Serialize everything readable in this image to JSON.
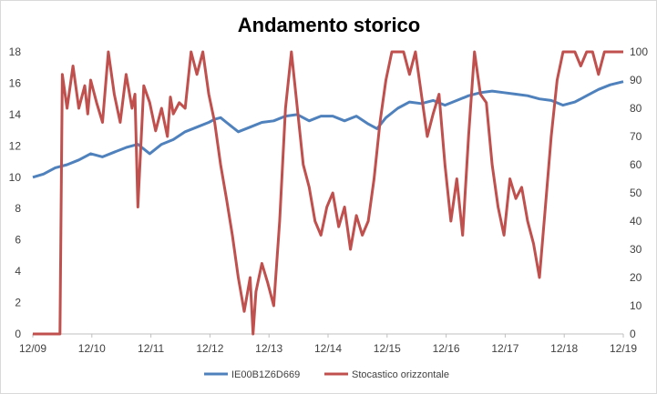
{
  "chart_data": {
    "type": "line",
    "title": "Andamento storico",
    "xlabel": "",
    "ylabel_left": "",
    "ylabel_right": "",
    "x_ticks": [
      "12/09",
      "12/10",
      "12/11",
      "12/12",
      "12/13",
      "12/14",
      "12/15",
      "12/16",
      "12/17",
      "12/18",
      "12/19"
    ],
    "ylim_left": [
      0,
      18
    ],
    "yticks_left": [
      0,
      2,
      4,
      6,
      8,
      10,
      12,
      14,
      16,
      18
    ],
    "ylim_right": [
      0,
      100
    ],
    "yticks_right": [
      0,
      10,
      20,
      30,
      40,
      50,
      60,
      70,
      80,
      90,
      100
    ],
    "grid": false,
    "legend_position": "bottom",
    "series": [
      {
        "name": "IE00B1Z6D669",
        "axis": "left",
        "color": "#4f81bd",
        "x": [
          2009.92,
          2010.1,
          2010.3,
          2010.5,
          2010.7,
          2010.9,
          2011.1,
          2011.3,
          2011.5,
          2011.7,
          2011.9,
          2012.1,
          2012.3,
          2012.5,
          2012.7,
          2012.9,
          2013.0,
          2013.1,
          2013.2,
          2013.4,
          2013.6,
          2013.8,
          2014.0,
          2014.2,
          2014.4,
          2014.6,
          2014.8,
          2015.0,
          2015.2,
          2015.4,
          2015.6,
          2015.75,
          2015.9,
          2016.1,
          2016.3,
          2016.5,
          2016.7,
          2016.9,
          2017.1,
          2017.3,
          2017.5,
          2017.7,
          2017.9,
          2018.1,
          2018.3,
          2018.5,
          2018.7,
          2018.9,
          2019.1,
          2019.3,
          2019.5,
          2019.7,
          2019.92
        ],
        "values": [
          10.0,
          10.2,
          10.6,
          10.8,
          11.1,
          11.5,
          11.3,
          11.6,
          11.9,
          12.1,
          11.5,
          12.1,
          12.4,
          12.9,
          13.2,
          13.5,
          13.7,
          13.8,
          13.5,
          12.9,
          13.2,
          13.5,
          13.6,
          13.9,
          14.0,
          13.6,
          13.9,
          13.9,
          13.6,
          13.9,
          13.4,
          13.1,
          13.8,
          14.4,
          14.8,
          14.7,
          14.9,
          14.6,
          14.9,
          15.2,
          15.4,
          15.5,
          15.4,
          15.3,
          15.2,
          15.0,
          14.9,
          14.6,
          14.8,
          15.2,
          15.6,
          15.9,
          16.1
        ]
      },
      {
        "name": "Stocastico orizzontale",
        "axis": "right",
        "color": "#c0504d",
        "x": [
          2009.92,
          2010.0,
          2010.1,
          2010.3,
          2010.38,
          2010.42,
          2010.5,
          2010.6,
          2010.7,
          2010.8,
          2010.85,
          2010.9,
          2011.0,
          2011.1,
          2011.2,
          2011.3,
          2011.4,
          2011.5,
          2011.6,
          2011.65,
          2011.7,
          2011.8,
          2011.9,
          2012.0,
          2012.1,
          2012.2,
          2012.25,
          2012.3,
          2012.4,
          2012.5,
          2012.6,
          2012.7,
          2012.8,
          2012.9,
          2013.0,
          2013.1,
          2013.2,
          2013.3,
          2013.4,
          2013.5,
          2013.6,
          2013.65,
          2013.7,
          2013.8,
          2013.9,
          2014.0,
          2014.1,
          2014.2,
          2014.3,
          2014.4,
          2014.5,
          2014.6,
          2014.7,
          2014.8,
          2014.9,
          2015.0,
          2015.1,
          2015.2,
          2015.3,
          2015.4,
          2015.5,
          2015.6,
          2015.7,
          2015.8,
          2015.9,
          2016.0,
          2016.1,
          2016.2,
          2016.3,
          2016.4,
          2016.5,
          2016.6,
          2016.7,
          2016.8,
          2016.9,
          2017.0,
          2017.1,
          2017.2,
          2017.3,
          2017.4,
          2017.5,
          2017.6,
          2017.7,
          2017.8,
          2017.9,
          2018.0,
          2018.1,
          2018.2,
          2018.3,
          2018.4,
          2018.5,
          2018.6,
          2018.7,
          2018.8,
          2018.9,
          2019.0,
          2019.1,
          2019.2,
          2019.3,
          2019.4,
          2019.5,
          2019.6,
          2019.7,
          2019.8,
          2019.92
        ],
        "values": [
          0,
          0,
          0,
          0,
          0,
          92,
          80,
          95,
          80,
          88,
          78,
          90,
          82,
          75,
          100,
          85,
          75,
          92,
          80,
          85,
          45,
          88,
          82,
          72,
          80,
          70,
          84,
          78,
          82,
          80,
          100,
          92,
          100,
          85,
          75,
          60,
          48,
          35,
          20,
          8,
          20,
          0,
          15,
          25,
          18,
          10,
          40,
          80,
          100,
          80,
          60,
          52,
          40,
          35,
          45,
          50,
          38,
          45,
          30,
          42,
          35,
          40,
          55,
          75,
          90,
          100,
          100,
          100,
          92,
          100,
          85,
          70,
          78,
          85,
          60,
          40,
          55,
          35,
          70,
          100,
          85,
          82,
          60,
          45,
          35,
          55,
          48,
          52,
          40,
          32,
          20,
          45,
          70,
          90,
          100,
          100,
          100,
          95,
          100,
          100,
          92,
          100,
          100,
          100,
          100
        ]
      }
    ]
  }
}
